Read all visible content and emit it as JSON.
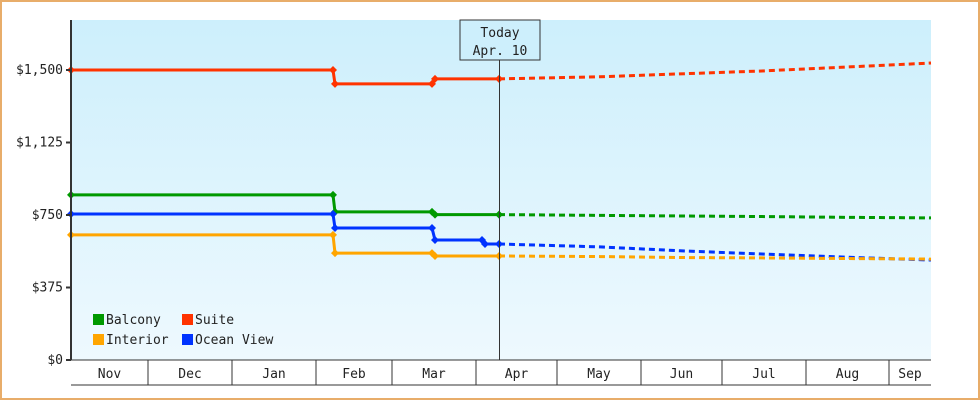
{
  "chart_data": {
    "type": "line",
    "title": "",
    "xlabel": "",
    "ylabel": "",
    "ylim": [
      0,
      1875
    ],
    "y_ticks": [
      "$0",
      "$375",
      "$750",
      "$1,125",
      "$1,500"
    ],
    "y_tick_values": [
      0,
      375,
      750,
      1125,
      1500
    ],
    "x_categories": [
      "Nov",
      "Dec",
      "Jan",
      "Feb",
      "Mar",
      "Apr",
      "May",
      "Jun",
      "Jul",
      "Aug",
      "Sep"
    ],
    "today_marker": {
      "line1": "Today",
      "line2": "Apr. 10"
    },
    "legend": [
      "Balcony",
      "Suite",
      "Interior",
      "Ocean View"
    ],
    "legend_position": "lower-left",
    "grid": false,
    "series": [
      {
        "name": "Suite",
        "color": "#ff3300",
        "points": [
          [
            "Nov 1",
            1500
          ],
          [
            "Feb 4",
            1500
          ],
          [
            "Feb 5",
            1428
          ],
          [
            "Mar 8",
            1428
          ],
          [
            "Mar 9",
            1454
          ],
          [
            "Apr 10",
            1454
          ]
        ],
        "forecast": [
          [
            "Apr 10",
            1454
          ],
          [
            "May",
            1465
          ],
          [
            "Jun",
            1480
          ],
          [
            "Jul",
            1495
          ],
          [
            "Aug",
            1515
          ],
          [
            "Sep end",
            1536
          ]
        ]
      },
      {
        "name": "Balcony",
        "color": "#009900",
        "points": [
          [
            "Nov 1",
            854
          ],
          [
            "Feb 4",
            854
          ],
          [
            "Feb 5",
            766
          ],
          [
            "Mar 8",
            766
          ],
          [
            "Mar 9",
            752
          ],
          [
            "Apr 10",
            752
          ]
        ],
        "forecast": [
          [
            "Apr 10",
            752
          ],
          [
            "May",
            748
          ],
          [
            "Jun",
            745
          ],
          [
            "Jul",
            742
          ],
          [
            "Aug",
            738
          ],
          [
            "Sep end",
            735
          ]
        ]
      },
      {
        "name": "Ocean View",
        "color": "#0033ff",
        "points": [
          [
            "Nov 1",
            755
          ],
          [
            "Feb 4",
            755
          ],
          [
            "Feb 5",
            683
          ],
          [
            "Mar 8",
            683
          ],
          [
            "Mar 9",
            621
          ],
          [
            "Mar 28",
            621
          ],
          [
            "Mar 29",
            600
          ],
          [
            "Apr 10",
            600
          ]
        ],
        "forecast": [
          [
            "Apr 10",
            600
          ],
          [
            "May",
            585
          ],
          [
            "Jun",
            565
          ],
          [
            "Jul",
            548
          ],
          [
            "Aug",
            532
          ],
          [
            "Sep end",
            517
          ]
        ]
      },
      {
        "name": "Interior",
        "color": "#ffa500",
        "points": [
          [
            "Nov 1",
            647
          ],
          [
            "Feb 4",
            647
          ],
          [
            "Feb 5",
            553
          ],
          [
            "Mar 8",
            553
          ],
          [
            "Mar 9",
            538
          ],
          [
            "Apr 10",
            538
          ]
        ],
        "forecast": [
          [
            "Apr 10",
            538
          ],
          [
            "May",
            535
          ],
          [
            "Jun",
            530
          ],
          [
            "Jul",
            528
          ],
          [
            "Aug",
            525
          ],
          [
            "Sep end",
            522
          ]
        ]
      }
    ]
  }
}
